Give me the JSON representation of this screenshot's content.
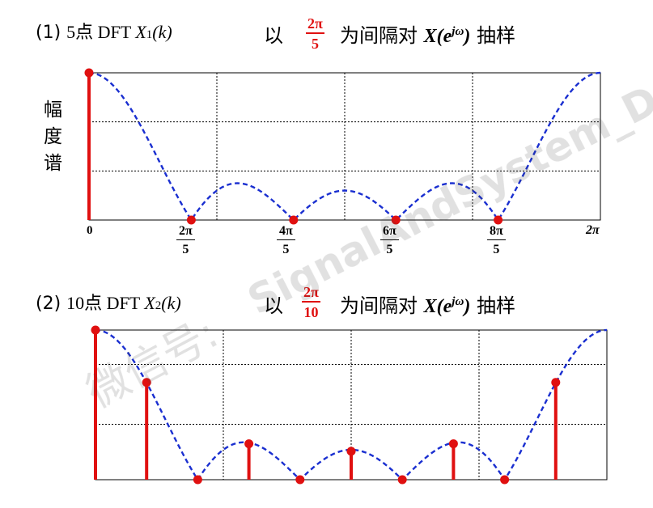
{
  "section1": {
    "prefix": "(1)",
    "count": "5点 DFT ",
    "xsym": "X",
    "xsub": "1",
    "karg": "(k)",
    "action": "以",
    "interval_num": "2π",
    "interval_den": "5",
    "desc": "为间隔对",
    "dtft_x": "X(e",
    "dtft_exp": "jω",
    "dtft_close": ")",
    "sample": "抽样"
  },
  "section2": {
    "prefix": "(2)",
    "count": "10点 DFT ",
    "xsym": "X",
    "xsub": "2",
    "karg": "(k)",
    "action": "以",
    "interval_num": "2π",
    "interval_den": "10",
    "desc": "为间隔对",
    "dtft_x": "X(e",
    "dtft_exp": "jω",
    "dtft_close": ")",
    "sample": "抽样"
  },
  "ylabel_chars": [
    "幅",
    "度",
    "谱"
  ],
  "xticks": {
    "zero": "0",
    "t1": {
      "num": "2π",
      "den": "5"
    },
    "t2": {
      "num": "4π",
      "den": "5"
    },
    "t3": {
      "num": "6π",
      "den": "5"
    },
    "t4": {
      "num": "8π",
      "den": "5"
    },
    "end": "2π"
  },
  "watermark_left": "微信号:",
  "watermark_right": "SignalAndSystem_DSP",
  "colors": {
    "curve": "#1a2fd0",
    "stem": "#e01010",
    "accent": "#e01010",
    "grid": "#000000"
  },
  "chart_data": {
    "type": "line",
    "curve": "magnitude spectrum |X(e^jω)|, dashed blue",
    "x_range": [
      0,
      6.2832
    ],
    "y_range": [
      0,
      1
    ],
    "grid": true,
    "panel1_dft_points": {
      "k": [
        0,
        1,
        2,
        3,
        4
      ],
      "omega": [
        "0",
        "2π/5",
        "4π/5",
        "6π/5",
        "8π/5"
      ],
      "magnitude": [
        1.0,
        0.0,
        0.0,
        0.0,
        0.0
      ]
    },
    "panel2_dft_points": {
      "k": [
        0,
        1,
        2,
        3,
        4,
        5,
        6,
        7,
        8,
        9
      ],
      "magnitude": [
        1.0,
        0.65,
        0.0,
        0.24,
        0.0,
        0.19,
        0.0,
        0.24,
        0.0,
        0.65
      ]
    }
  }
}
